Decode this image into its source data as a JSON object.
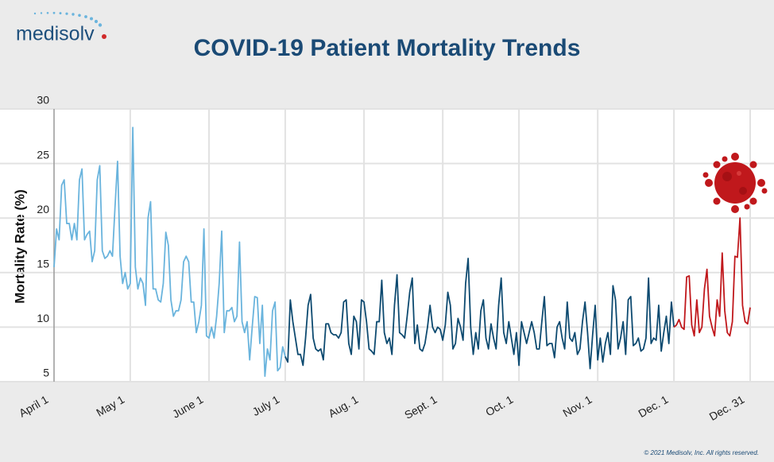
{
  "logo": "medisolv",
  "footer": "© 2021 Medisolv, Inc. All rights reserved.",
  "chart_data": {
    "type": "line",
    "title": "COVID-19 Patient Mortality Trends",
    "y_label": "Mortality Rate (%)",
    "ylim": [
      5,
      30
    ],
    "yticks": [
      5,
      10,
      15,
      20,
      25,
      30
    ],
    "grid": true,
    "categories": [
      "April 1",
      null,
      null,
      null,
      null,
      null,
      null,
      null,
      null,
      null,
      null,
      null,
      null,
      null,
      null,
      null,
      null,
      null,
      null,
      null,
      null,
      null,
      null,
      null,
      null,
      null,
      null,
      null,
      null,
      null,
      "May 1",
      null,
      null,
      null,
      null,
      null,
      null,
      null,
      null,
      null,
      null,
      null,
      null,
      null,
      null,
      null,
      null,
      null,
      null,
      null,
      null,
      null,
      null,
      null,
      null,
      null,
      null,
      null,
      null,
      null,
      null,
      "June 1",
      null,
      null,
      null,
      null,
      null,
      null,
      null,
      null,
      null,
      null,
      null,
      null,
      null,
      null,
      null,
      null,
      null,
      null,
      null,
      null,
      null,
      null,
      null,
      null,
      null,
      null,
      null,
      null,
      null,
      "July 1",
      null,
      null,
      null,
      null,
      null,
      null,
      null,
      null,
      null,
      null,
      null,
      null,
      null,
      null,
      null,
      null,
      null,
      null,
      null,
      null,
      null,
      null,
      null,
      null,
      null,
      null,
      null,
      null,
      null,
      null,
      "Aug. 1",
      null,
      null,
      null,
      null,
      null,
      null,
      null,
      null,
      null,
      null,
      null,
      null,
      null,
      null,
      null,
      null,
      null,
      null,
      null,
      null,
      null,
      null,
      null,
      null,
      null,
      null,
      null,
      null,
      null,
      null,
      "Sept. 1",
      null,
      null,
      null,
      null,
      null,
      null,
      null,
      null,
      null,
      null,
      null,
      null,
      null,
      null,
      null,
      null,
      null,
      null,
      null,
      null,
      null,
      null,
      null,
      null,
      null,
      null,
      null,
      null,
      null,
      "Oct. 1",
      null,
      null,
      null,
      null,
      null,
      null,
      null,
      null,
      null,
      null,
      null,
      null,
      null,
      null,
      null,
      null,
      null,
      null,
      null,
      null,
      null,
      null,
      null,
      null,
      null,
      null,
      null,
      null,
      null,
      null,
      "Nov. 1",
      null,
      null,
      null,
      null,
      null,
      null,
      null,
      null,
      null,
      null,
      null,
      null,
      null,
      null,
      null,
      null,
      null,
      null,
      null,
      null,
      null,
      null,
      null,
      null,
      null,
      null,
      null,
      null,
      null,
      "Dec. 1",
      null,
      null,
      null,
      null,
      null,
      null,
      null,
      null,
      null,
      null,
      null,
      null,
      null,
      null,
      null,
      null,
      null,
      null,
      null,
      null,
      null,
      null,
      null,
      null,
      null,
      null,
      null,
      null,
      null,
      "Dec. 31"
    ],
    "series": [
      {
        "color": "#6ab4dd",
        "values": [
          15.5,
          19,
          18,
          23,
          23.5,
          19.5,
          19.5,
          18,
          19.5,
          18,
          23.5,
          24.5,
          18,
          18.5,
          18.8,
          16,
          17,
          23.5,
          24.8,
          17,
          16.3,
          16.5,
          17,
          16.5,
          21,
          25.2,
          16.5,
          14,
          15,
          13.5,
          14,
          28.3,
          15.5,
          13.5,
          14.5,
          14,
          12,
          20,
          21.5,
          13.5,
          13.5,
          12.5,
          12.3,
          14,
          18.7,
          17.5,
          12.5,
          11,
          11.5,
          11.5,
          12.5,
          16,
          16.5,
          16,
          12.3,
          12.3,
          9.5,
          10.5,
          12,
          19,
          9.2,
          9,
          10,
          9,
          11,
          14,
          18.8,
          9.5,
          11.5,
          11.5,
          11.8,
          10.5,
          11,
          17.8,
          10.5,
          9.5,
          10.5,
          7,
          10,
          12.8,
          12.7,
          8.5,
          12,
          5.5,
          8,
          7,
          11.5,
          12.3,
          6,
          6.3,
          8.2,
          7.3,
          null,
          null,
          null,
          null,
          null,
          null,
          null,
          null,
          null,
          null,
          null,
          null,
          null,
          null,
          null,
          null,
          null,
          null,
          null,
          null,
          null,
          null,
          null,
          null,
          null,
          null,
          null,
          null,
          null,
          null,
          null,
          null,
          null,
          null,
          null,
          null,
          null,
          null,
          null,
          null,
          null,
          null,
          null,
          null,
          null,
          null,
          null,
          null,
          null,
          null,
          null,
          null,
          null,
          null,
          null,
          null,
          null,
          null,
          null,
          null,
          null,
          null,
          null,
          null,
          null,
          null,
          null,
          null,
          null,
          null,
          null,
          null,
          null,
          null,
          null,
          null,
          null,
          null,
          null,
          null,
          null,
          null,
          null,
          null,
          null,
          null,
          null,
          null,
          null,
          null,
          null,
          null,
          null,
          null,
          null,
          null,
          null,
          null,
          null,
          null,
          null,
          null,
          null,
          null,
          null,
          null,
          null,
          null,
          null,
          null,
          null,
          null,
          null,
          null,
          null,
          null,
          null,
          null,
          null,
          null,
          null,
          null,
          null,
          null,
          null,
          null,
          null,
          null,
          null,
          null,
          null,
          null,
          null,
          null,
          null,
          null,
          null,
          null,
          null,
          null,
          null,
          null,
          null,
          null,
          null,
          null,
          null,
          null,
          null,
          null,
          null,
          null,
          null,
          null,
          null,
          null,
          null,
          null,
          null,
          null,
          null,
          null,
          null,
          null,
          null,
          null,
          null,
          null,
          null,
          null,
          null,
          null,
          null,
          null,
          null,
          null,
          null,
          null,
          null,
          null,
          null,
          null,
          null
        ]
      },
      {
        "color": "#0d4a70",
        "values": [
          null,
          null,
          null,
          null,
          null,
          null,
          null,
          null,
          null,
          null,
          null,
          null,
          null,
          null,
          null,
          null,
          null,
          null,
          null,
          null,
          null,
          null,
          null,
          null,
          null,
          null,
          null,
          null,
          null,
          null,
          null,
          null,
          null,
          null,
          null,
          null,
          null,
          null,
          null,
          null,
          null,
          null,
          null,
          null,
          null,
          null,
          null,
          null,
          null,
          null,
          null,
          null,
          null,
          null,
          null,
          null,
          null,
          null,
          null,
          null,
          null,
          null,
          null,
          null,
          null,
          null,
          null,
          null,
          null,
          null,
          null,
          null,
          null,
          null,
          null,
          null,
          null,
          null,
          null,
          null,
          null,
          null,
          null,
          null,
          null,
          null,
          null,
          null,
          null,
          null,
          null,
          7.3,
          6.8,
          12.5,
          10.5,
          9,
          7.5,
          7.5,
          6.5,
          9,
          12,
          13,
          9,
          8,
          7.8,
          8,
          7,
          10.3,
          10.3,
          9.5,
          9.3,
          9.3,
          9,
          9.5,
          12.3,
          12.5,
          8.5,
          7.5,
          11,
          10.5,
          8,
          12.5,
          12.3,
          10.5,
          8,
          7.8,
          7.5,
          10.5,
          10.5,
          14.3,
          9.5,
          8.5,
          9,
          7.5,
          12,
          14.8,
          9.5,
          9.3,
          9,
          11,
          13.2,
          14.5,
          8.5,
          10.2,
          8,
          7.8,
          8.5,
          10,
          12,
          10,
          9.5,
          10,
          9.8,
          8.8,
          10.2,
          13.2,
          12,
          8,
          8.5,
          10.8,
          10,
          8.8,
          14,
          16.3,
          10,
          7.5,
          9.5,
          8,
          11.5,
          12.5,
          9,
          8,
          10.3,
          9,
          8,
          12,
          14.5,
          9.5,
          8.5,
          10.5,
          9,
          7.5,
          9.5,
          6.5,
          10.5,
          9.5,
          8.5,
          9.5,
          10.5,
          9.5,
          8,
          8,
          10.5,
          12.8,
          8.3,
          8.5,
          8.5,
          7.2,
          10,
          10.5,
          9,
          8,
          12.3,
          9,
          8.7,
          9.5,
          7.5,
          8,
          10.5,
          12.3,
          9.5,
          6.2,
          9.3,
          12,
          7,
          9,
          6.8,
          8.5,
          9.5,
          7.5,
          13.8,
          12.5,
          8,
          9,
          10.5,
          7.5,
          12.5,
          12.8,
          8.3,
          8.5,
          9,
          7.8,
          8,
          9,
          14.5,
          8.5,
          9,
          8.8,
          12,
          7.8,
          9.5,
          11,
          8.5,
          12.3,
          10,
          null,
          null,
          null,
          null,
          null,
          null,
          null,
          null,
          null,
          null,
          null,
          null,
          null,
          null,
          null,
          null,
          null,
          null,
          null,
          null,
          null,
          null,
          null,
          null,
          null,
          null,
          null,
          null,
          null,
          null
        ]
      },
      {
        "color": "#c0181c",
        "values": [
          null,
          null,
          null,
          null,
          null,
          null,
          null,
          null,
          null,
          null,
          null,
          null,
          null,
          null,
          null,
          null,
          null,
          null,
          null,
          null,
          null,
          null,
          null,
          null,
          null,
          null,
          null,
          null,
          null,
          null,
          null,
          null,
          null,
          null,
          null,
          null,
          null,
          null,
          null,
          null,
          null,
          null,
          null,
          null,
          null,
          null,
          null,
          null,
          null,
          null,
          null,
          null,
          null,
          null,
          null,
          null,
          null,
          null,
          null,
          null,
          null,
          null,
          null,
          null,
          null,
          null,
          null,
          null,
          null,
          null,
          null,
          null,
          null,
          null,
          null,
          null,
          null,
          null,
          null,
          null,
          null,
          null,
          null,
          null,
          null,
          null,
          null,
          null,
          null,
          null,
          null,
          null,
          null,
          null,
          null,
          null,
          null,
          null,
          null,
          null,
          null,
          null,
          null,
          null,
          null,
          null,
          null,
          null,
          null,
          null,
          null,
          null,
          null,
          null,
          null,
          null,
          null,
          null,
          null,
          null,
          null,
          null,
          null,
          null,
          null,
          null,
          null,
          null,
          null,
          null,
          null,
          null,
          null,
          null,
          null,
          null,
          null,
          null,
          null,
          null,
          null,
          null,
          null,
          null,
          null,
          null,
          null,
          null,
          null,
          null,
          null,
          null,
          null,
          null,
          null,
          null,
          null,
          null,
          null,
          null,
          null,
          null,
          null,
          null,
          null,
          null,
          null,
          null,
          null,
          null,
          null,
          null,
          null,
          null,
          null,
          null,
          null,
          null,
          null,
          null,
          null,
          null,
          null,
          null,
          null,
          null,
          null,
          null,
          null,
          null,
          null,
          null,
          null,
          null,
          null,
          null,
          null,
          null,
          null,
          null,
          null,
          null,
          null,
          null,
          null,
          null,
          null,
          null,
          null,
          null,
          null,
          null,
          null,
          null,
          null,
          null,
          null,
          null,
          null,
          null,
          null,
          null,
          null,
          null,
          null,
          null,
          null,
          null,
          null,
          null,
          null,
          null,
          null,
          null,
          null,
          null,
          null,
          null,
          null,
          null,
          null,
          null,
          null,
          null,
          10,
          10.2,
          10.7,
          10,
          9.8,
          14.6,
          14.7,
          10.2,
          9.2,
          12.5,
          9.5,
          10,
          13.5,
          15.3,
          11,
          10,
          9.2,
          12.5,
          11,
          16.8,
          11.5,
          9.5,
          9.2,
          10.5,
          16.5,
          16.4,
          20,
          12,
          10.5,
          10.3,
          11.8
        ]
      }
    ]
  }
}
